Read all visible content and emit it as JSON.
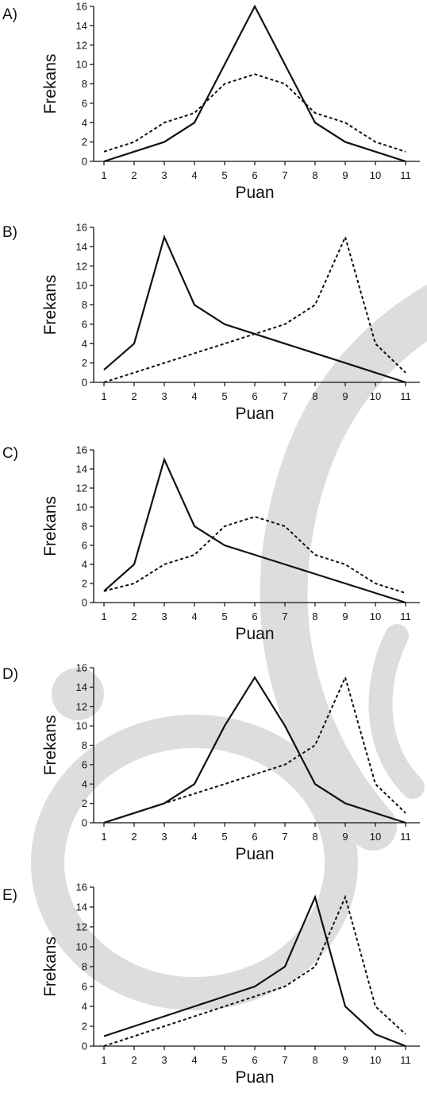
{
  "watermark": {
    "color": "#dddddd",
    "shape": "stylized-letter-c"
  },
  "chart_data": [
    {
      "type": "line",
      "option_label": "A)",
      "xlabel": "Puan",
      "ylabel": "Frekans",
      "x": [
        1,
        2,
        3,
        4,
        5,
        6,
        7,
        8,
        9,
        10,
        11
      ],
      "xlim": [
        1,
        11
      ],
      "ylim": [
        0,
        16
      ],
      "yticks": [
        0,
        2,
        4,
        6,
        8,
        10,
        12,
        14,
        16
      ],
      "grid": false,
      "series": [
        {
          "style": "solid",
          "values": [
            0,
            1,
            2,
            4,
            10,
            16,
            10,
            4,
            2,
            1,
            0
          ]
        },
        {
          "style": "dashed",
          "values": [
            1,
            2,
            4,
            5,
            8,
            9,
            8,
            5,
            4,
            2,
            1
          ]
        }
      ]
    },
    {
      "type": "line",
      "option_label": "B)",
      "xlabel": "Puan",
      "ylabel": "Frekans",
      "x": [
        1,
        2,
        3,
        4,
        5,
        6,
        7,
        8,
        9,
        10,
        11
      ],
      "xlim": [
        1,
        11
      ],
      "ylim": [
        0,
        16
      ],
      "yticks": [
        0,
        2,
        4,
        6,
        8,
        10,
        12,
        14,
        16
      ],
      "grid": false,
      "series": [
        {
          "style": "solid",
          "values": [
            1.3,
            4,
            15,
            8,
            6,
            5,
            4,
            3,
            2,
            1,
            0
          ]
        },
        {
          "style": "dashed",
          "values": [
            0,
            1,
            2,
            3,
            4,
            5,
            6,
            8,
            15,
            4,
            1
          ]
        }
      ]
    },
    {
      "type": "line",
      "option_label": "C)",
      "xlabel": "Puan",
      "ylabel": "Frekans",
      "x": [
        1,
        2,
        3,
        4,
        5,
        6,
        7,
        8,
        9,
        10,
        11
      ],
      "xlim": [
        1,
        11
      ],
      "ylim": [
        0,
        16
      ],
      "yticks": [
        0,
        2,
        4,
        6,
        8,
        10,
        12,
        14,
        16
      ],
      "grid": false,
      "series": [
        {
          "style": "solid",
          "values": [
            1.2,
            4,
            15,
            8,
            6,
            5,
            4,
            3,
            2,
            1,
            0
          ]
        },
        {
          "style": "dashed",
          "values": [
            1.2,
            2,
            4,
            5,
            8,
            9,
            8,
            5,
            4,
            2,
            1
          ]
        }
      ]
    },
    {
      "type": "line",
      "option_label": "D)",
      "xlabel": "Puan",
      "ylabel": "Frekans",
      "x": [
        1,
        2,
        3,
        4,
        5,
        6,
        7,
        8,
        9,
        10,
        11
      ],
      "xlim": [
        1,
        11
      ],
      "ylim": [
        0,
        16
      ],
      "yticks": [
        0,
        2,
        4,
        6,
        8,
        10,
        12,
        14,
        16
      ],
      "grid": false,
      "series": [
        {
          "style": "solid",
          "values": [
            0,
            1,
            2,
            4,
            10,
            15,
            10,
            4,
            2,
            1,
            0
          ]
        },
        {
          "style": "dashed",
          "values": [
            0,
            1,
            2,
            3,
            4,
            5,
            6,
            8,
            15,
            4,
            1
          ]
        }
      ]
    },
    {
      "type": "line",
      "option_label": "E)",
      "xlabel": "Puan",
      "ylabel": "Frekans",
      "x": [
        1,
        2,
        3,
        4,
        5,
        6,
        7,
        8,
        9,
        10,
        11
      ],
      "xlim": [
        1,
        11
      ],
      "ylim": [
        0,
        16
      ],
      "yticks": [
        0,
        2,
        4,
        6,
        8,
        10,
        12,
        14,
        16
      ],
      "grid": false,
      "series": [
        {
          "style": "solid",
          "values": [
            1,
            2,
            3,
            4,
            5,
            6,
            8,
            15,
            4,
            1.2,
            0
          ]
        },
        {
          "style": "dashed",
          "values": [
            0,
            1,
            2,
            3,
            4,
            5,
            6,
            8,
            15,
            4,
            1.2
          ]
        }
      ]
    }
  ]
}
